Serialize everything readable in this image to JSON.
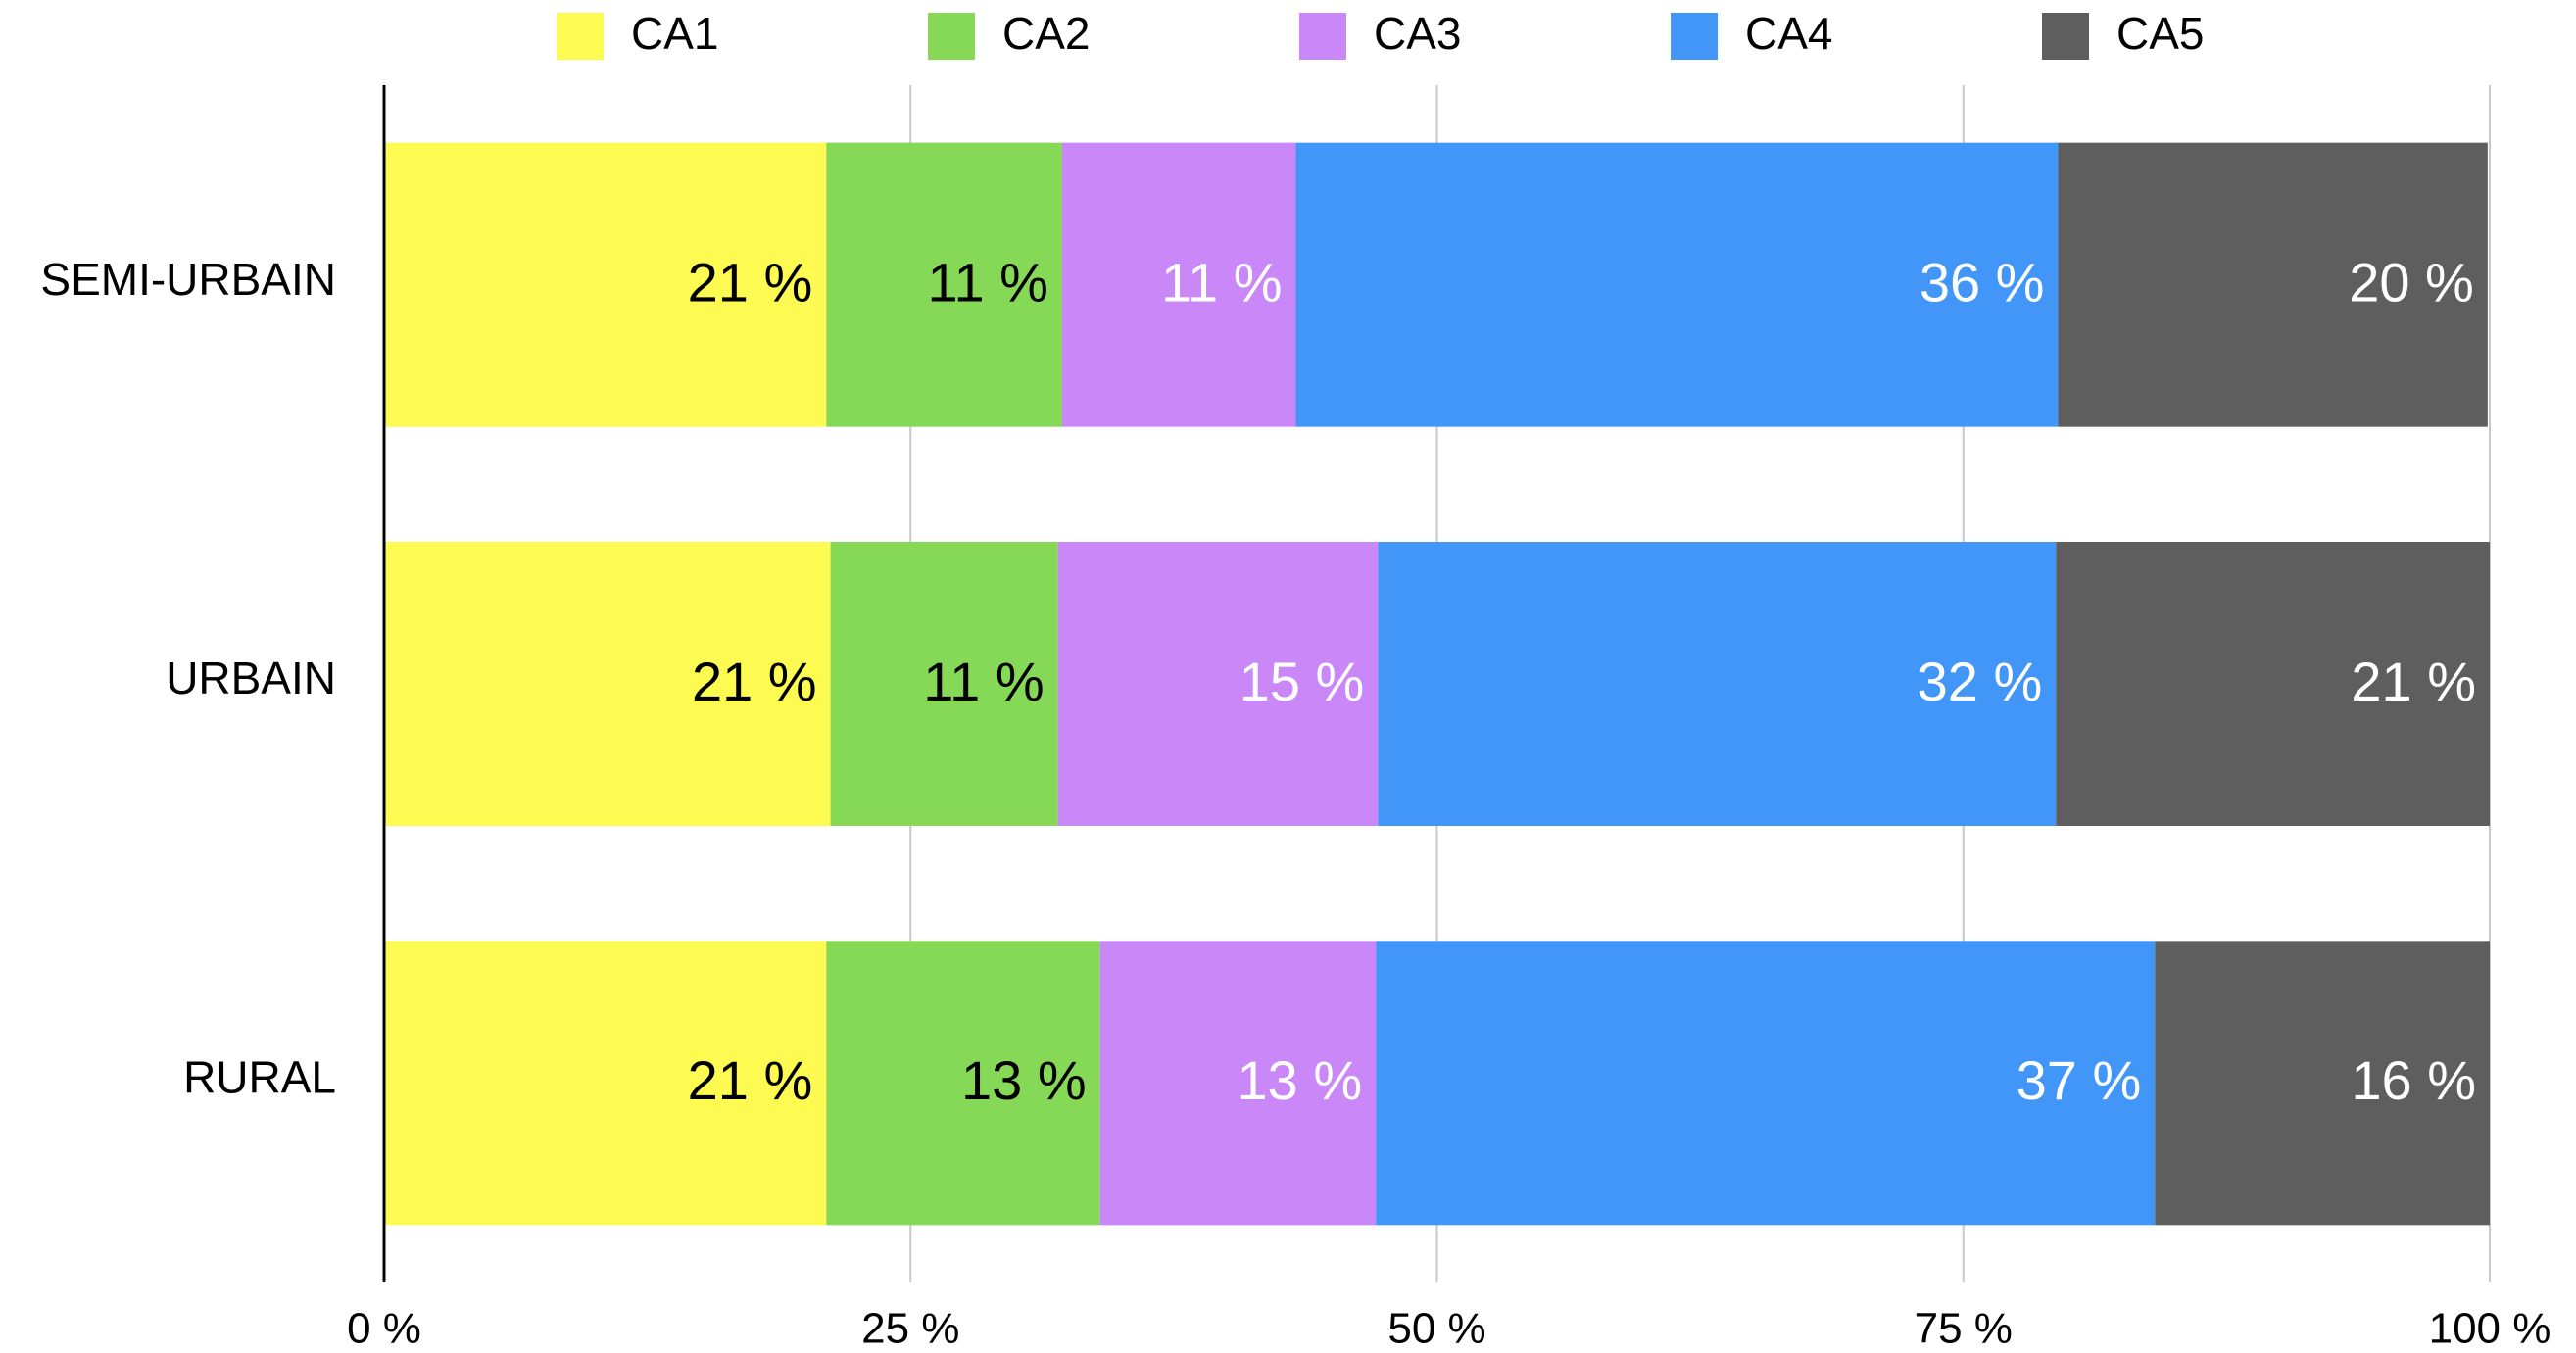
{
  "chart_data": {
    "type": "stacked-bar-horizontal",
    "categories": [
      "SEMI-URBAIN",
      "URBAIN",
      "RURAL"
    ],
    "series": [
      {
        "name": "CA1",
        "color": "#fdfb52",
        "label_color": "#000000",
        "values": [
          21.0,
          21.2,
          21.0
        ],
        "value_labels": [
          "21 %",
          "21 %",
          "21 %"
        ]
      },
      {
        "name": "CA2",
        "color": "#86d957",
        "label_color": "#000000",
        "values": [
          11.2,
          10.8,
          13.0
        ],
        "value_labels": [
          "11 %",
          "11 %",
          "13 %"
        ]
      },
      {
        "name": "CA3",
        "color": "#c987f7",
        "label_color": "#ffffff",
        "values": [
          11.1,
          15.2,
          13.1
        ],
        "value_labels": [
          "11 %",
          "15 %",
          "13 %"
        ]
      },
      {
        "name": "CA4",
        "color": "#4296f7",
        "label_color": "#ffffff",
        "values": [
          36.2,
          32.2,
          37.0
        ],
        "value_labels": [
          "36 %",
          "32 %",
          "37 %"
        ]
      },
      {
        "name": "CA5",
        "color": "#5e5e5e",
        "label_color": "#ffffff",
        "values": [
          20.4,
          20.6,
          15.9
        ],
        "value_labels": [
          "20 %",
          "21 %",
          "16 %"
        ]
      }
    ],
    "xlim": [
      0,
      100
    ],
    "xticks": [
      {
        "value": 0,
        "label": "0 %"
      },
      {
        "value": 25,
        "label": "25 %"
      },
      {
        "value": 50,
        "label": "50 %"
      },
      {
        "value": 75,
        "label": "75 %"
      },
      {
        "value": 100,
        "label": "100 %"
      }
    ],
    "grid": true,
    "legend": "top"
  }
}
